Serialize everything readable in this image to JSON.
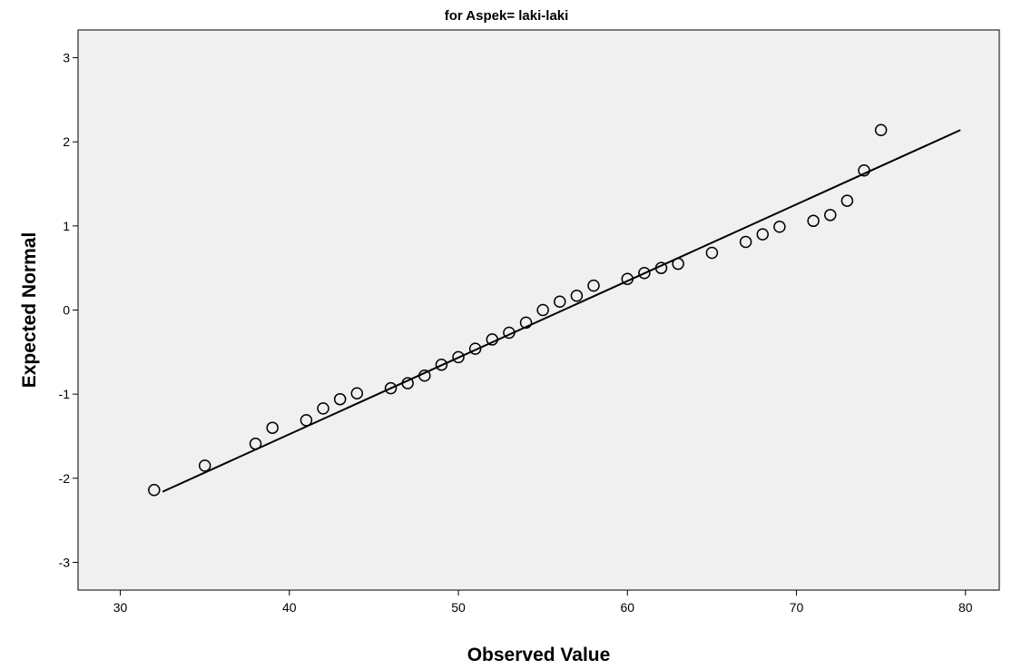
{
  "chart_data": {
    "type": "scatter",
    "title": "for Aspek= laki-laki",
    "xlabel": "Observed Value",
    "ylabel": "Expected Normal",
    "xlim": [
      27.5,
      82
    ],
    "ylim": [
      -3.33,
      3.33
    ],
    "xticks": [
      "30",
      "40",
      "50",
      "60",
      "70",
      "80"
    ],
    "yticks": [
      "3",
      "2",
      "1",
      "0",
      "-1",
      "-2",
      "-3"
    ],
    "grid": false,
    "legend": "none",
    "colors": {
      "plot_background": "#f0f0f0",
      "marker": "#000000",
      "line": "#000000"
    },
    "points": [
      {
        "x": 32,
        "y": -2.14
      },
      {
        "x": 35,
        "y": -1.85
      },
      {
        "x": 38,
        "y": -1.59
      },
      {
        "x": 39,
        "y": -1.4
      },
      {
        "x": 41,
        "y": -1.31
      },
      {
        "x": 42,
        "y": -1.17
      },
      {
        "x": 43,
        "y": -1.06
      },
      {
        "x": 44,
        "y": -0.99
      },
      {
        "x": 46,
        "y": -0.93
      },
      {
        "x": 47,
        "y": -0.87
      },
      {
        "x": 48,
        "y": -0.78
      },
      {
        "x": 49,
        "y": -0.65
      },
      {
        "x": 50,
        "y": -0.56
      },
      {
        "x": 51,
        "y": -0.46
      },
      {
        "x": 52,
        "y": -0.35
      },
      {
        "x": 53,
        "y": -0.27
      },
      {
        "x": 54,
        "y": -0.15
      },
      {
        "x": 55,
        "y": 0.0
      },
      {
        "x": 56,
        "y": 0.1
      },
      {
        "x": 57,
        "y": 0.17
      },
      {
        "x": 58,
        "y": 0.29
      },
      {
        "x": 60,
        "y": 0.37
      },
      {
        "x": 61,
        "y": 0.44
      },
      {
        "x": 62,
        "y": 0.5
      },
      {
        "x": 63,
        "y": 0.55
      },
      {
        "x": 65,
        "y": 0.68
      },
      {
        "x": 67,
        "y": 0.81
      },
      {
        "x": 68,
        "y": 0.9
      },
      {
        "x": 69,
        "y": 0.99
      },
      {
        "x": 71,
        "y": 1.06
      },
      {
        "x": 72,
        "y": 1.13
      },
      {
        "x": 73,
        "y": 1.3
      },
      {
        "x": 74,
        "y": 1.66
      },
      {
        "x": 75,
        "y": 2.14
      }
    ],
    "reference_line": {
      "x": [
        32.5,
        79.7
      ],
      "y": [
        -2.16,
        2.14
      ]
    }
  }
}
